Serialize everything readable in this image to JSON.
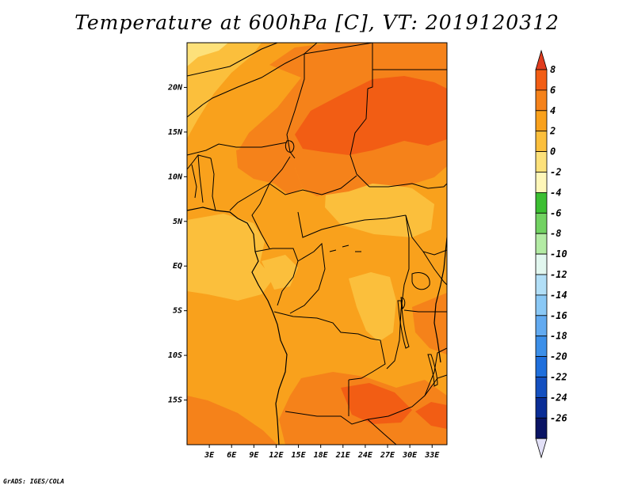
{
  "title": "Temperature at 600hPa [C], VT: 2019120312",
  "credit": "GrADS: IGES/COLA",
  "map": {
    "lon_range": [
      0,
      35
    ],
    "lat_range": [
      -20,
      25
    ],
    "lat_labels": [
      "20N",
      "15N",
      "10N",
      "5N",
      "EQ",
      "5S",
      "10S",
      "15S"
    ],
    "lat_values": [
      20,
      15,
      10,
      5,
      0,
      -5,
      -10,
      -15
    ],
    "lon_labels": [
      "3E",
      "6E",
      "9E",
      "12E",
      "15E",
      "18E",
      "21E",
      "24E",
      "27E",
      "30E",
      "33E"
    ],
    "lon_values": [
      3,
      6,
      9,
      12,
      15,
      18,
      21,
      24,
      27,
      30,
      33
    ]
  },
  "colorbar": {
    "labels": [
      "8",
      "6",
      "4",
      "2",
      "0",
      "-2",
      "-4",
      "-6",
      "-8",
      "-10",
      "-12",
      "-14",
      "-16",
      "-18",
      "-20",
      "-22",
      "-24",
      "-26"
    ],
    "colors": [
      "#e03c1e",
      "#f25d14",
      "#f5821a",
      "#f9a11c",
      "#fbbf3c",
      "#fde17a",
      "#fff7b9",
      "#3cbf32",
      "#72d262",
      "#b3eba4",
      "#e2f7ef",
      "#b2dff7",
      "#8ac8f5",
      "#62aaf0",
      "#3c8fe8",
      "#1f6fdc",
      "#1450c0",
      "#0a2d96",
      "#0a1464",
      "#e2e0f7"
    ]
  },
  "colors": {
    "land_base": "#f9a11c",
    "warm": "#f5821a",
    "hot": "#f25d14",
    "cool": "#fbbf3c",
    "coolest": "#fde17a"
  }
}
